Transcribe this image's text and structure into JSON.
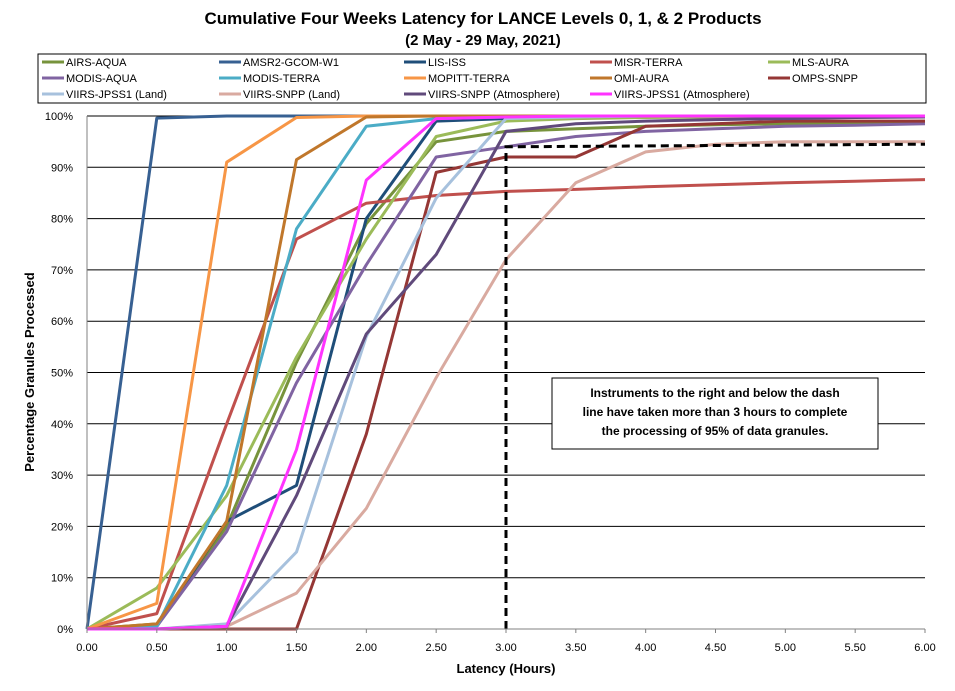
{
  "chart_data": {
    "type": "line",
    "title": "Cumulative Four Weeks Latency  for LANCE Levels 0, 1, & 2 Products",
    "subtitle": "(2  May  -  29  May,  2021)",
    "xlabel": "Latency (Hours)",
    "ylabel": "Percentage Granules Processed",
    "xlim": [
      0,
      6
    ],
    "ylim": [
      0,
      100
    ],
    "x_ticks": [
      "0.00",
      "0.50",
      "1.00",
      "1.50",
      "2.00",
      "2.50",
      "3.00",
      "3.50",
      "4.00",
      "4.50",
      "5.00",
      "5.50",
      "6.00"
    ],
    "y_ticks": [
      "0%",
      "10%",
      "20%",
      "30%",
      "40%",
      "50%",
      "60%",
      "70%",
      "80%",
      "90%",
      "100%"
    ],
    "grid": "horizontal",
    "legend_position": "top",
    "x": [
      0,
      0.5,
      1,
      1.5,
      2,
      2.5,
      3,
      3.5,
      4,
      4.5,
      5,
      5.5,
      6
    ],
    "series": [
      {
        "name": "AIRS-AQUA",
        "color": "#77933c",
        "values": [
          0,
          1,
          20,
          52,
          79,
          95,
          97,
          97.5,
          98,
          98.3,
          98.5,
          98.7,
          99
        ]
      },
      {
        "name": "AMSR2-GCOM-W1",
        "color": "#376092",
        "values": [
          0,
          99.6,
          100,
          100,
          100,
          100,
          100,
          100,
          100,
          100,
          100,
          100,
          100
        ]
      },
      {
        "name": "LIS-ISS",
        "color": "#1f4e79",
        "values": [
          0,
          0.5,
          21,
          28,
          80,
          99,
          99.5,
          99.7,
          99.8,
          99.9,
          100,
          100,
          100
        ]
      },
      {
        "name": "MISR-TERRA",
        "color": "#c0504d",
        "values": [
          0,
          3,
          40,
          76,
          83,
          84.5,
          85.3,
          85.7,
          86.2,
          86.6,
          87,
          87.3,
          87.6
        ]
      },
      {
        "name": "MLS-AURA",
        "color": "#9bbb59",
        "values": [
          0,
          8,
          26,
          53,
          76,
          96,
          99,
          99.5,
          99.7,
          99.8,
          99.9,
          100,
          100
        ]
      },
      {
        "name": "MODIS-AQUA",
        "color": "#8064a2",
        "values": [
          0,
          0.5,
          19,
          48,
          71,
          92,
          94,
          96,
          97,
          97.5,
          98,
          98.2,
          98.5
        ]
      },
      {
        "name": "MODIS-TERRA",
        "color": "#4bacc6",
        "values": [
          0,
          0.5,
          28,
          78,
          98,
          99.5,
          99.8,
          99.9,
          100,
          100,
          100,
          100,
          100
        ]
      },
      {
        "name": "MOPITT-TERRA",
        "color": "#f79646",
        "values": [
          0,
          5,
          91,
          99.7,
          100,
          100,
          100,
          100,
          100,
          100,
          100,
          100,
          100
        ]
      },
      {
        "name": "OMI-AURA",
        "color": "#c0772b",
        "values": [
          0,
          1,
          21,
          91.5,
          99.8,
          100,
          100,
          100,
          100,
          100,
          100,
          100,
          100
        ]
      },
      {
        "name": "OMPS-SNPP",
        "color": "#953735",
        "values": [
          0,
          0,
          0,
          0,
          38,
          89,
          92,
          92,
          98,
          98.5,
          99,
          99,
          99
        ]
      },
      {
        "name": "VIIRS-JPSS1 (Land)",
        "color": "#a7c1dd",
        "values": [
          0,
          0,
          1,
          15,
          57,
          84,
          99.5,
          99.8,
          100,
          100,
          100,
          100,
          100
        ]
      },
      {
        "name": "VIIRS-SNPP (Land)",
        "color": "#d9aaa0",
        "values": [
          0,
          0,
          0.5,
          7,
          23.5,
          49,
          72,
          87,
          93,
          94.5,
          95,
          95,
          95
        ]
      },
      {
        "name": "VIIRS-SNPP (Atmosphere)",
        "color": "#604a7b",
        "values": [
          0,
          0,
          0.5,
          26,
          57.5,
          73,
          97,
          98.5,
          99,
          99.3,
          99.5,
          99.7,
          99.8
        ]
      },
      {
        "name": "VIIRS-JPSS1 (Atmosphere)",
        "color": "#ff33ff",
        "values": [
          0,
          0,
          0.5,
          35,
          87.5,
          99.5,
          99.8,
          100,
          100,
          100,
          100,
          100,
          100
        ]
      }
    ],
    "dash_line": {
      "x": [
        3.0,
        3.0,
        6.0
      ],
      "y": [
        0,
        94,
        94.5
      ]
    },
    "annotation": [
      "Instruments to the right and below the dash",
      "line have taken more than 3 hours to complete",
      "the processing of 95% of data granules."
    ]
  }
}
